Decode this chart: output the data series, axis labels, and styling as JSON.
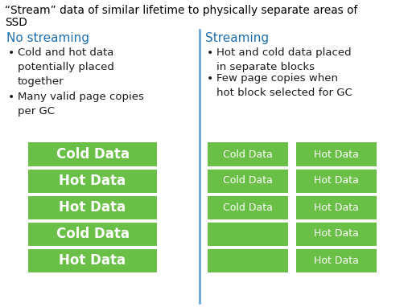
{
  "title_line1": "“Stream” data of similar lifetime to physically separate areas of",
  "title_line2": "SSD",
  "left_heading": "No streaming",
  "left_bullet1": "Cold and hot data\npotentially placed\ntogether",
  "left_bullet2": "Many valid page copies\nper GC",
  "right_heading": "Streaming",
  "right_bullet1": "Hot and cold data placed\nin separate blocks",
  "right_bullet2": "Few page copies when\nhot block selected for GC",
  "left_blocks": [
    "Cold Data",
    "Hot Data",
    "Hot Data",
    "Cold Data",
    "Hot Data"
  ],
  "center_cold_blocks": [
    "Cold Data",
    "Cold Data",
    "Cold Data",
    "",
    ""
  ],
  "right_hot_blocks": [
    "Hot Data",
    "Hot Data",
    "Hot Data",
    "Hot Data",
    "Hot Data"
  ],
  "block_color": "#6abf47",
  "text_color_white": "#ffffff",
  "heading_color": "#1f6fad",
  "title_color": "#000000",
  "bullet_color": "#1a1a1a",
  "divider_color": "#5b9bd5",
  "background_color": "#ffffff",
  "figsize": [
    5.07,
    3.82
  ],
  "dpi": 100
}
